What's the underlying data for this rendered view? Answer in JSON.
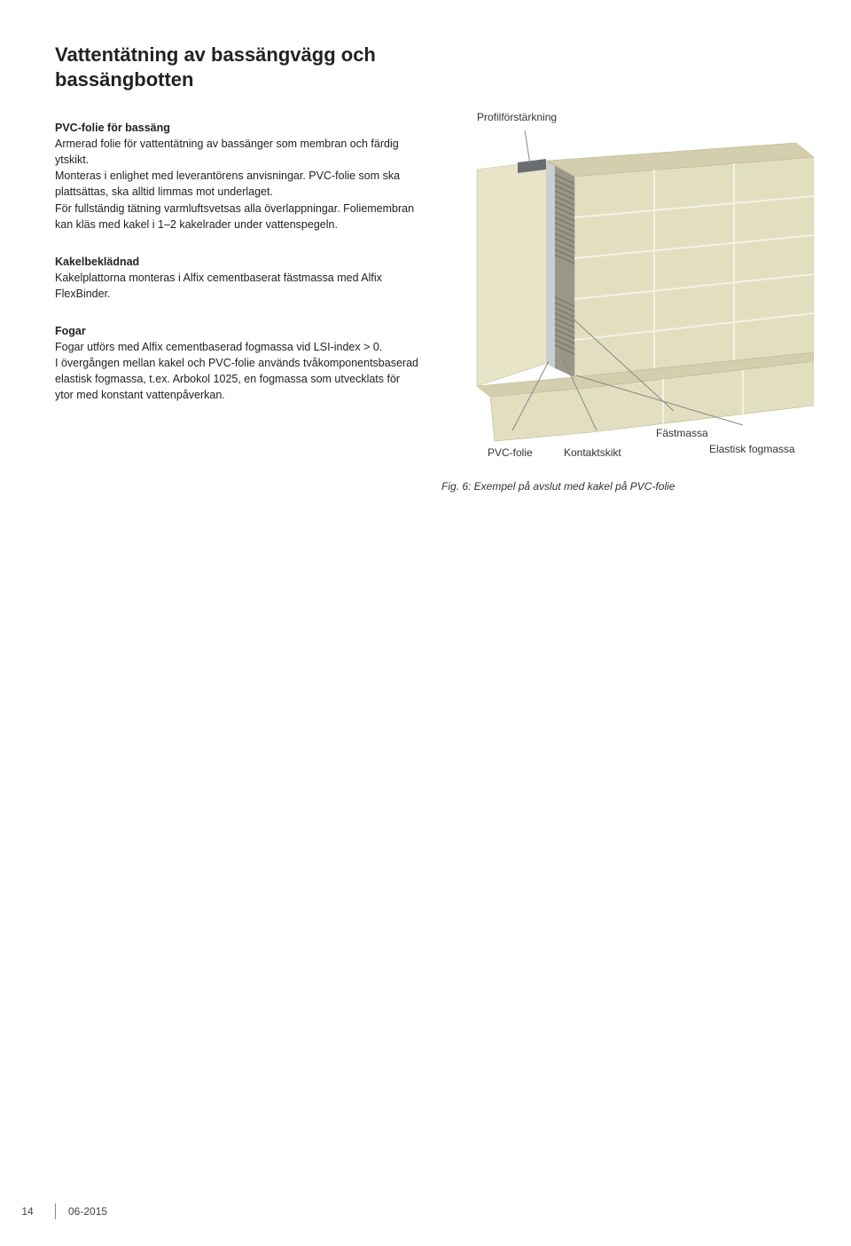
{
  "title": "Vattentätning av bassängvägg och bassängbotten",
  "sections": {
    "pvc": {
      "heading": "PVC-folie för bassäng",
      "body": "Armerad folie för vattentätning av bassänger som membran och färdig ytskikt.\nMonteras i enlighet med leverantörens anvisningar. PVC-folie som ska plattsättas, ska alltid limmas mot underlaget.\nFör fullständig tätning varmluftsvetsas alla överlappningar. Foliemembran kan kläs med kakel i 1–2 kakelrader under vattenspegeln."
    },
    "kakelbekladnad": {
      "heading": "Kakelbeklädnad",
      "body": "Kakelplattorna monteras i Alfix cementbaserat fästmassa med Alfix FlexBinder."
    },
    "fogar": {
      "heading": "Fogar",
      "body": "Fogar utförs med Alfix cementbaserad fogmassa vid LSI-index > 0.\nI övergången mellan kakel och PVC-folie används tvåkomponentsbaserad elastisk fogmassa, t.ex. Arbokol 1025, en fogmassa som utvecklats för ytor med konstant vattenpåverkan."
    }
  },
  "figure": {
    "callouts": {
      "profil": "Profilförstärkning",
      "pvc_folie": "PVC-folie",
      "kontaktskikt": "Kontaktskikt",
      "fastmassa": "Fästmassa",
      "elastisk": "Elastisk fogmassa"
    },
    "caption": "Fig. 6: Exempel på avslut med kakel på PVC-folie",
    "colors": {
      "tile_face": "#e2dec0",
      "tile_face_dark": "#d3cfae",
      "tile_edge": "#c7c29e",
      "grout": "#f4f2e4",
      "pvc": "#c9cfd2",
      "mortar": "#9a9688",
      "mortar_dark": "#7c7868",
      "profile": "#6a6e72",
      "leader": "#888888",
      "structure": "#e8e4c8"
    }
  },
  "footer": {
    "page_number": "14",
    "date": "06-2015"
  }
}
